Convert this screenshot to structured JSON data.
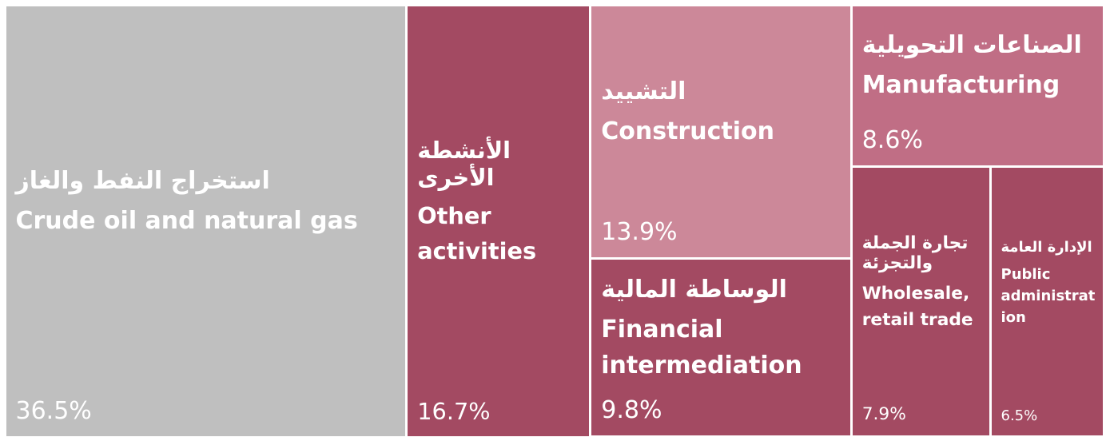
{
  "chart_data": {
    "type": "treemap",
    "categories": [
      "Crude oil and natural gas",
      "Other activities",
      "Construction",
      "Financial intermediation",
      "Manufacturing",
      "Wholesale, retail trade",
      "Public administration"
    ],
    "categories_ar": [
      "استخراج النفط والغاز",
      "الأنشطة الأخرى",
      "التشييد",
      "الوساطة المالية",
      "الصناعات التحويلية",
      "تجارة الجملة والتجزئة",
      "الإدارة العامة"
    ],
    "values": [
      36.5,
      16.7,
      13.9,
      9.8,
      8.6,
      7.9,
      6.5
    ],
    "value_labels": [
      "36.5%",
      "16.7%",
      "13.9%",
      "9.8%",
      "8.6%",
      "7.9%",
      "6.5%"
    ],
    "colors": [
      "#bfbfbf",
      "#a34a62",
      "#cc8899",
      "#a34a62",
      "#c06e85",
      "#a34a62",
      "#a34a62"
    ]
  }
}
